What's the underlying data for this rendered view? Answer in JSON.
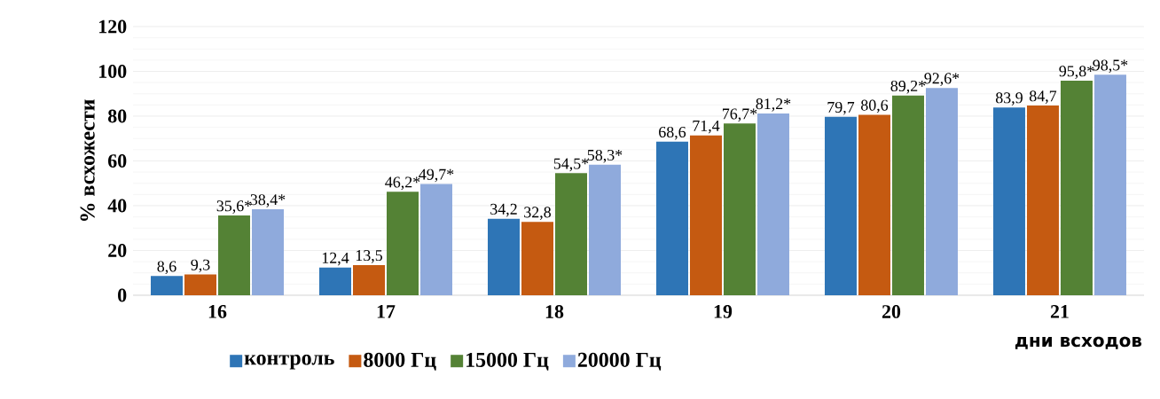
{
  "chart_data": {
    "type": "bar",
    "ylabel": "% всхожести",
    "xlabel": "дни всходов",
    "categories": [
      "16",
      "17",
      "18",
      "19",
      "20",
      "21"
    ],
    "series": [
      {
        "name": "контроль",
        "color": "#2e75b6",
        "values": [
          8.6,
          12.4,
          34.2,
          68.6,
          79.7,
          83.9
        ],
        "value_labels": [
          "8,6",
          "12,4",
          "34,2",
          "68,6",
          "79,7",
          "83,9"
        ]
      },
      {
        "name": "8000 Гц",
        "color": "#c55a11",
        "values": [
          9.3,
          13.5,
          32.8,
          71.4,
          80.6,
          84.7
        ],
        "value_labels": [
          "9,3",
          "13,5",
          "32,8",
          "71,4",
          "80,6",
          "84,7"
        ]
      },
      {
        "name": "15000 Гц",
        "color": "#548235",
        "values": [
          35.6,
          46.2,
          54.5,
          76.7,
          89.2,
          95.8
        ],
        "value_labels": [
          "35,6*",
          "46,2*",
          "54,5*",
          "76,7*",
          "89,2*",
          "95,8*"
        ]
      },
      {
        "name": "20000 Гц",
        "color": "#8faadc",
        "values": [
          38.4,
          49.7,
          58.3,
          81.2,
          92.6,
          98.5
        ],
        "value_labels": [
          "38,4*",
          "49,7*",
          "58,3*",
          "81,2*",
          "92,6*",
          "98,5*"
        ]
      }
    ],
    "ylim": [
      0,
      120
    ],
    "yticks": [
      0,
      20,
      40,
      60,
      80,
      100,
      120
    ],
    "grid": "y",
    "legend": "bottom"
  }
}
